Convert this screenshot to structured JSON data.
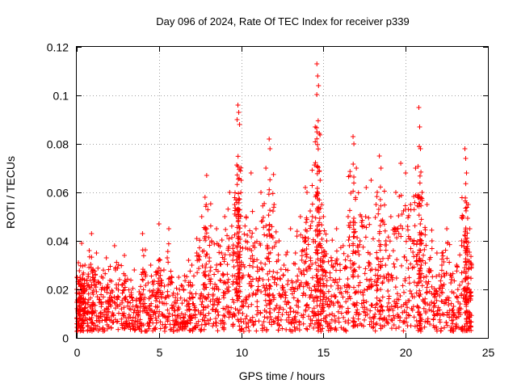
{
  "chart_data": {
    "type": "scatter",
    "title": "Day 096 of 2024, Rate Of TEC Index for receiver p339",
    "xlabel": "GPS time / hours",
    "ylabel": "ROTI / TECUs",
    "xlim": [
      0,
      25
    ],
    "ylim": [
      0,
      0.12
    ],
    "xticks": [
      0,
      5,
      10,
      15,
      20,
      25
    ],
    "yticks": [
      0,
      0.02,
      0.04,
      0.06,
      0.08,
      0.1,
      0.12
    ],
    "xtick_labels": [
      "0",
      "5",
      "10",
      "15",
      "20",
      "25"
    ],
    "ytick_labels": [
      "0",
      "0.02",
      "0.04",
      "0.06",
      "0.08",
      "0.1",
      "0.12"
    ],
    "grid": true,
    "marker": "+",
    "series": [
      {
        "name": "p339",
        "color": "#ff0000",
        "x": [
          0.0,
          0.1,
          0.2,
          0.3,
          0.4,
          0.5,
          0.7,
          0.9,
          1.0,
          1.2,
          1.5,
          1.8,
          2.0,
          2.3,
          2.6,
          2.9,
          3.2,
          3.5,
          3.8,
          4.0,
          4.2,
          4.5,
          4.8,
          5.0,
          5.3,
          5.6,
          5.9,
          6.2,
          6.5,
          6.8,
          7.0,
          7.3,
          7.6,
          7.8,
          7.9,
          8.2,
          8.5,
          8.8,
          9.0,
          9.3,
          9.6,
          9.75,
          9.8,
          9.85,
          9.9,
          10.0,
          10.3,
          10.6,
          10.9,
          11.2,
          11.5,
          11.7,
          11.75,
          12.0,
          12.3,
          12.6,
          13.0,
          13.3,
          13.6,
          13.9,
          14.0,
          14.3,
          14.5,
          14.6,
          14.65,
          14.7,
          14.8,
          14.9,
          15.0,
          15.2,
          15.5,
          15.8,
          16.2,
          16.5,
          16.8,
          16.85,
          17.0,
          17.3,
          17.6,
          17.9,
          18.2,
          18.4,
          18.5,
          18.8,
          19.1,
          19.4,
          19.7,
          20.0,
          20.3,
          20.6,
          20.8,
          20.85,
          20.9,
          21.0,
          21.3,
          21.6,
          21.9,
          22.2,
          22.5,
          22.8,
          23.1,
          23.4,
          23.6,
          23.65,
          23.7,
          23.8,
          23.9,
          24.0
        ],
        "y": [
          0.02,
          0.031,
          0.025,
          0.039,
          0.016,
          0.03,
          0.022,
          0.043,
          0.018,
          0.035,
          0.02,
          0.033,
          0.015,
          0.038,
          0.024,
          0.034,
          0.012,
          0.028,
          0.019,
          0.043,
          0.026,
          0.03,
          0.017,
          0.047,
          0.028,
          0.045,
          0.013,
          0.025,
          0.02,
          0.032,
          0.03,
          0.035,
          0.05,
          0.058,
          0.067,
          0.04,
          0.045,
          0.035,
          0.05,
          0.06,
          0.055,
          0.09,
          0.096,
          0.093,
          0.088,
          0.065,
          0.05,
          0.068,
          0.045,
          0.06,
          0.07,
          0.082,
          0.078,
          0.055,
          0.04,
          0.03,
          0.045,
          0.035,
          0.05,
          0.062,
          0.06,
          0.048,
          0.087,
          0.113,
          0.108,
          0.104,
          0.065,
          0.055,
          0.05,
          0.04,
          0.03,
          0.045,
          0.038,
          0.05,
          0.083,
          0.08,
          0.07,
          0.05,
          0.062,
          0.065,
          0.055,
          0.075,
          0.07,
          0.04,
          0.05,
          0.06,
          0.072,
          0.068,
          0.055,
          0.07,
          0.095,
          0.087,
          0.078,
          0.06,
          0.055,
          0.04,
          0.035,
          0.03,
          0.045,
          0.025,
          0.03,
          0.04,
          0.078,
          0.074,
          0.068,
          0.055,
          0.045,
          0.03
        ]
      }
    ]
  }
}
